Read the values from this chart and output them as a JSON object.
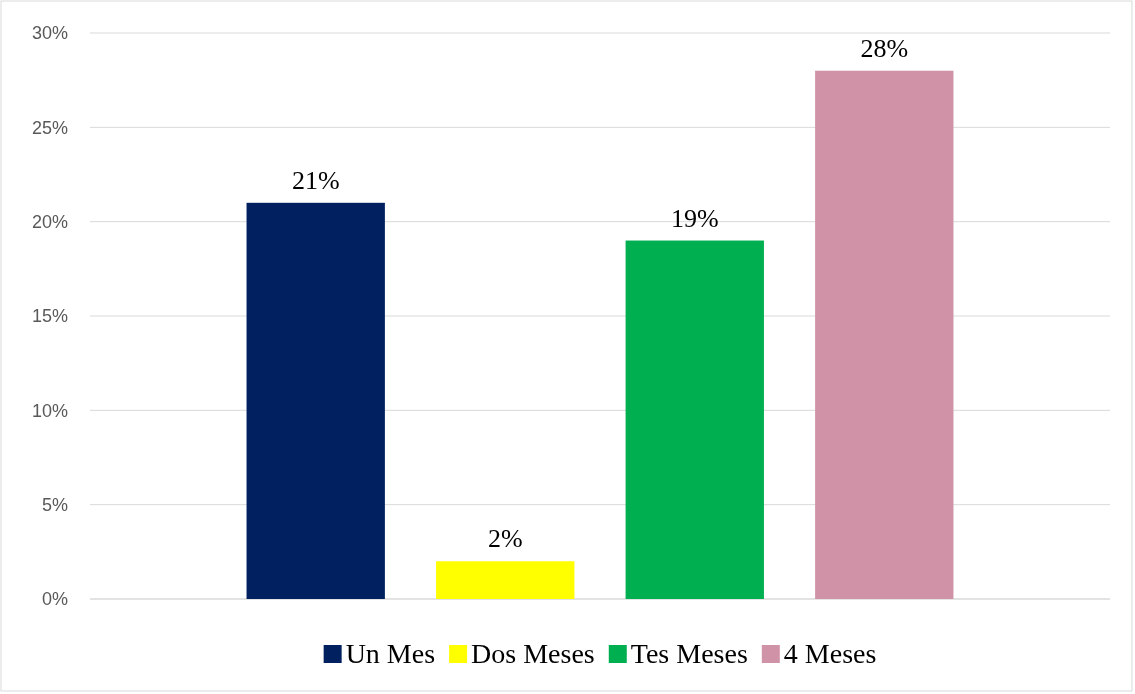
{
  "chart_data": {
    "type": "bar",
    "categories": [
      null
    ],
    "series": [
      {
        "name": "Un Mes",
        "color": "#002060",
        "values": [
          21
        ],
        "value_labels": [
          "21%"
        ]
      },
      {
        "name": "Dos Meses",
        "color": "#ffff00",
        "values": [
          2
        ],
        "value_labels": [
          "2%"
        ]
      },
      {
        "name": "Tes Meses",
        "color": "#00b050",
        "values": [
          19
        ],
        "value_labels": [
          "19%"
        ]
      },
      {
        "name": "4 Meses",
        "color": "#d092a7",
        "values": [
          28
        ],
        "value_labels": [
          "28%"
        ]
      }
    ],
    "ylim": [
      0,
      30
    ],
    "yticks": [
      {
        "value": 0,
        "label": "0%"
      },
      {
        "value": 5,
        "label": "5%"
      },
      {
        "value": 10,
        "label": "10%"
      },
      {
        "value": 15,
        "label": "15%"
      },
      {
        "value": 20,
        "label": "20%"
      },
      {
        "value": 25,
        "label": "25%"
      },
      {
        "value": 30,
        "label": "30%"
      }
    ],
    "grid": "y",
    "legend": "bottom"
  }
}
